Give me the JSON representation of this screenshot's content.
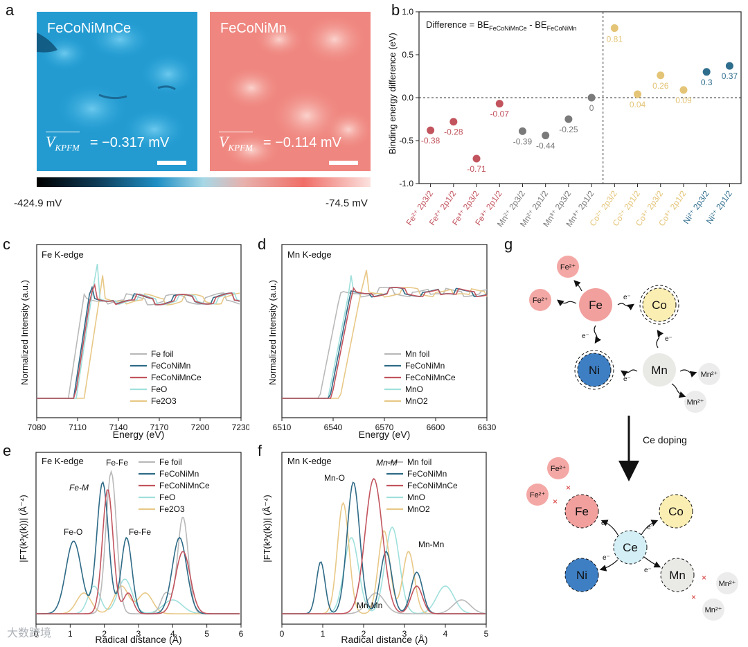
{
  "panel_letters": {
    "a": "a",
    "b": "b",
    "c": "c",
    "d": "d",
    "e": "e",
    "f": "f",
    "g": "g"
  },
  "kpfm": {
    "left": {
      "label": "FeCoNiMnCe",
      "v_symbol": "V",
      "v_sub": "KPFM",
      "value": "= −0.317 mV",
      "color": "#1e9bd0"
    },
    "right": {
      "label": "FeCoNiMn",
      "v_symbol": "V",
      "v_sub": "KPFM",
      "value": "= −0.114 mV",
      "color": "#f08a84"
    },
    "colorbar": {
      "min_label": "-424.9 mV",
      "max_label": "-74.5 mV"
    }
  },
  "chart_data": [
    {
      "id": "b",
      "type": "scatter",
      "title_prefix": "Difference = BE",
      "title_sub1": "FeCoNiMnCe",
      "title_mid": " - BE",
      "title_sub2": "FeCoNiMn",
      "ylabel": "Binding energy difference (eV)",
      "ylim": [
        -1.0,
        1.0
      ],
      "yticks": [
        "1.0",
        "0.5",
        "0.0",
        "-0.5",
        "-1.0"
      ],
      "points": [
        {
          "label": "Fe²⁺ 2p3/2",
          "value": -0.38,
          "text": "-0.38",
          "color": "#c2545e"
        },
        {
          "label": "Fe²⁺ 2p1/2",
          "value": -0.28,
          "text": "-0.28",
          "color": "#c2545e"
        },
        {
          "label": "Fe³⁺ 2p3/2",
          "value": -0.71,
          "text": "-0.71",
          "color": "#c2545e"
        },
        {
          "label": "Fe³⁺ 2p1/2",
          "value": -0.07,
          "text": "-0.07",
          "color": "#c2545e"
        },
        {
          "label": "Mn²⁺ 2p3/2",
          "value": -0.39,
          "text": "-0.39",
          "color": "#7a7a7a"
        },
        {
          "label": "Mn²⁺ 2p1/2",
          "value": -0.44,
          "text": "-0.44",
          "color": "#7a7a7a"
        },
        {
          "label": "Mn³⁺ 2p3/2",
          "value": -0.25,
          "text": "-0.25",
          "color": "#7a7a7a"
        },
        {
          "label": "Mn³⁺ 2p1/2",
          "value": 0.0,
          "text": "0",
          "color": "#7a7a7a"
        },
        {
          "label": "Co²⁺ 2p3/2",
          "value": 0.81,
          "text": "0.81",
          "color": "#e4c476"
        },
        {
          "label": "Co²⁺ 2p1/2",
          "value": 0.04,
          "text": "0.04",
          "color": "#e4c476"
        },
        {
          "label": "Co³⁺ 2p3/2",
          "value": 0.26,
          "text": "0.26",
          "color": "#e4c476"
        },
        {
          "label": "Co³⁺ 2p1/2",
          "value": 0.09,
          "text": "0.09",
          "color": "#e4c476"
        },
        {
          "label": "Ni²⁺ 2p3/2",
          "value": 0.3,
          "text": "0.3",
          "color": "#2f6d8d"
        },
        {
          "label": "Ni²⁺ 2p1/2",
          "value": 0.37,
          "text": "0.37",
          "color": "#2f6d8d"
        }
      ]
    },
    {
      "id": "c",
      "type": "line",
      "annotation": "Fe K-edge",
      "xlabel": "Energy (eV)",
      "ylabel": "Normalized Intensity (a.u.)",
      "xlim": [
        7080,
        7235
      ],
      "xticks": [
        "7080",
        "7110",
        "7140",
        "7170",
        "7200",
        "7230"
      ],
      "series": [
        {
          "name": "Fe foil",
          "color": "#b9b9b9"
        },
        {
          "name": "FeCoNiMn",
          "color": "#2e6a86"
        },
        {
          "name": "FeCoNiMnCe",
          "color": "#c2545e"
        },
        {
          "name": "FeO",
          "color": "#9fe0dc"
        },
        {
          "name": "Fe2O3",
          "color": "#e8c887"
        }
      ]
    },
    {
      "id": "d",
      "type": "line",
      "annotation": "Mn K-edge",
      "xlabel": "Energy (eV)",
      "ylabel": "Normalized Intensity (a.u.)",
      "xlim": [
        6510,
        6630
      ],
      "xticks": [
        "6510",
        "6540",
        "6570",
        "6600",
        "6630"
      ],
      "series": [
        {
          "name": "Mn foil",
          "color": "#b9b9b9"
        },
        {
          "name": "FeCoNiMn",
          "color": "#2e6a86"
        },
        {
          "name": "FeCoNiMnCe",
          "color": "#c2545e"
        },
        {
          "name": "MnO",
          "color": "#9fe0dc"
        },
        {
          "name": "MnO2",
          "color": "#e8c887"
        }
      ]
    },
    {
      "id": "e",
      "type": "line",
      "annotation": "Fe K-edge",
      "xlabel": "Radical distance (Å)",
      "ylabel": "|FT(k³χ(k))| (Å⁻⁴)",
      "xlim": [
        0,
        6
      ],
      "xticks": [
        "0",
        "1",
        "2",
        "3",
        "4",
        "5",
        "6"
      ],
      "peak_labels": [
        "Fe-Fe",
        "Fe-M",
        "Fe-O",
        "Fe-Fe"
      ],
      "series": [
        {
          "name": "Fe foil",
          "color": "#b9b9b9"
        },
        {
          "name": "FeCoNiMn",
          "color": "#2e6a86"
        },
        {
          "name": "FeCoNiMnCe",
          "color": "#c2545e"
        },
        {
          "name": "FeO",
          "color": "#9fe0dc"
        },
        {
          "name": "Fe2O3",
          "color": "#e8c887"
        }
      ]
    },
    {
      "id": "f",
      "type": "line",
      "annotation": "Mn K-edge",
      "xlabel": "Radical distance (Å)",
      "ylabel": "|FT(k³χ(k))| (Å⁻⁴)",
      "xlim": [
        0,
        5
      ],
      "xticks": [
        "0",
        "1",
        "2",
        "3",
        "4",
        "5"
      ],
      "peak_labels": [
        "Mn-O",
        "Mn-M",
        "Mn-Mn",
        "Mn-Mn"
      ],
      "series": [
        {
          "name": "Mn foil",
          "color": "#b9b9b9"
        },
        {
          "name": "FeCoNiMn",
          "color": "#2e6a86"
        },
        {
          "name": "FeCoNiMnCe",
          "color": "#c2545e"
        },
        {
          "name": "MnO",
          "color": "#9fe0dc"
        },
        {
          "name": "MnO2",
          "color": "#e8c887"
        }
      ]
    }
  ],
  "scheme_g": {
    "arrow_label": "Ce doping",
    "electron": "e⁻",
    "top": {
      "fe": "Fe",
      "co": "Co",
      "ni": "Ni",
      "mn": "Mn",
      "fe2": "Fe²⁺",
      "mn2": "Mn²⁺"
    },
    "bottom": {
      "fe": "Fe",
      "co": "Co",
      "ni": "Ni",
      "mn": "Mn",
      "ce": "Ce",
      "fe2": "Fe²⁺",
      "mn2": "Mn²⁺"
    },
    "colors": {
      "fe": "#f1a09e",
      "co": "#fbeeb3",
      "ni": "#3e7fc4",
      "mn": "#e9e9e6",
      "ce": "#d4f0f6",
      "fe2": "#f4a8a5",
      "mn2": "#ececec"
    }
  },
  "watermark": "大数跨境"
}
